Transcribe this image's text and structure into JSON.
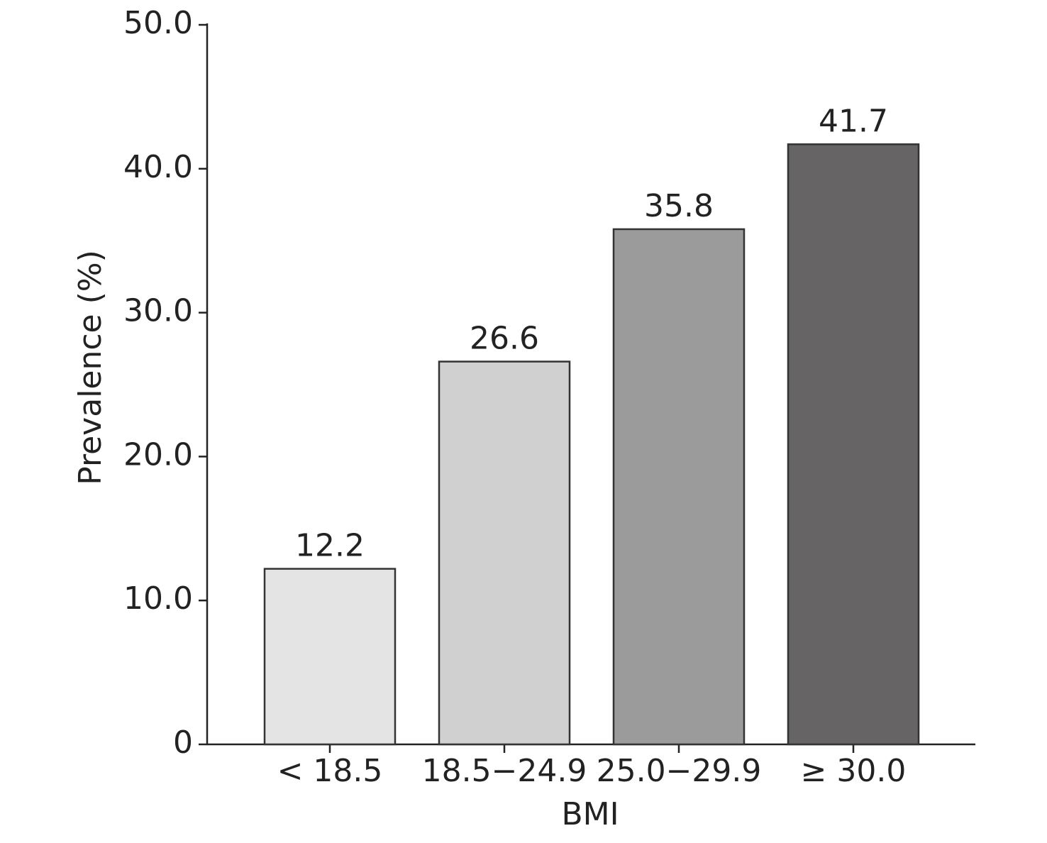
{
  "chart_data": {
    "type": "bar",
    "x_label": "BMI",
    "y_label": "Prevalence (%)",
    "categories": [
      "< 18.5",
      "18.5−24.9",
      "25.0−29.9",
      "≥ 30.0"
    ],
    "values": [
      12.2,
      26.6,
      35.8,
      41.7
    ],
    "colors": [
      "#e4e4e4",
      "#d0d0d0",
      "#9c9b9b",
      "#666465"
    ],
    "ylim": [
      0,
      50
    ],
    "yticks": [
      0,
      {
        "value": 10,
        "label": "10.0"
      },
      {
        "value": 20,
        "label": "20.0"
      },
      {
        "value": 30,
        "label": "30.0"
      },
      {
        "value": 40,
        "label": "40.0"
      },
      {
        "value": 50,
        "label": "50.0"
      }
    ],
    "grid": false
  }
}
